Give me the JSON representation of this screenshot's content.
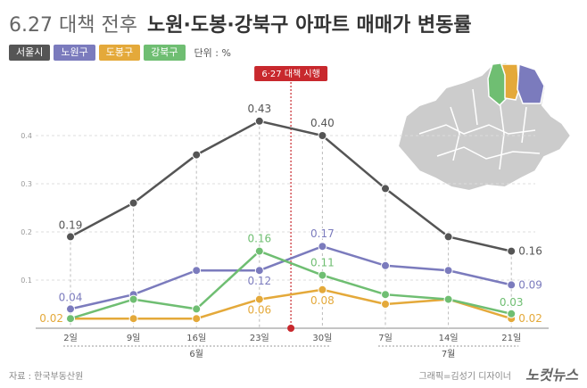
{
  "title": {
    "light": "6.27 대책 전후",
    "bold": "노원·도봉·강북구 아파트 매매가 변동률"
  },
  "unit_label": "단위 : %",
  "source": "자료 : 한국부동산원",
  "credit": "그래픽=김성기 디자이너",
  "logo": "노컷뉴스",
  "policy_label": "6·27 대책 시행",
  "colors": {
    "seoul": "#555555",
    "nowon": "#7b7bbd",
    "dobong": "#e4a93a",
    "gangbuk": "#6fbe72",
    "policy": "#c8282d",
    "grid": "#dddddd"
  },
  "chart_data": {
    "type": "line",
    "title": "6.27 대책 전후 노원·도봉·강북구 아파트 매매가 변동률",
    "xlabel": "",
    "ylabel": "",
    "categories": [
      "2일",
      "9일",
      "16일",
      "23일",
      "30일",
      "7일",
      "14일",
      "21일"
    ],
    "month_labels": [
      {
        "label": "6월",
        "from": 0,
        "to": 4
      },
      {
        "label": "7월",
        "from": 5,
        "to": 7
      }
    ],
    "yticks": [
      0.1,
      0.2,
      0.3,
      0.4
    ],
    "ylim": [
      0,
      0.48
    ],
    "series": [
      {
        "name": "서울시",
        "key": "seoul",
        "values": [
          0.19,
          0.26,
          0.36,
          0.43,
          0.4,
          0.29,
          0.19,
          0.16
        ]
      },
      {
        "name": "노원구",
        "key": "nowon",
        "values": [
          0.04,
          0.07,
          0.12,
          0.12,
          0.17,
          0.13,
          0.12,
          0.09
        ]
      },
      {
        "name": "도봉구",
        "key": "dobong",
        "values": [
          0.02,
          0.02,
          0.02,
          0.06,
          0.08,
          0.05,
          0.06,
          0.02
        ]
      },
      {
        "name": "강북구",
        "key": "gangbuk",
        "values": [
          0.02,
          0.06,
          0.04,
          0.16,
          0.11,
          0.07,
          0.06,
          0.03
        ]
      }
    ],
    "data_labels": [
      {
        "series": "seoul",
        "index": 0,
        "text": "0.19"
      },
      {
        "series": "seoul",
        "index": 3,
        "text": "0.43"
      },
      {
        "series": "seoul",
        "index": 4,
        "text": "0.40"
      },
      {
        "series": "seoul",
        "index": 7,
        "text": "0.16"
      },
      {
        "series": "nowon",
        "index": 0,
        "text": "0.04"
      },
      {
        "series": "nowon",
        "index": 3,
        "text": "0.12"
      },
      {
        "series": "nowon",
        "index": 4,
        "text": "0.17"
      },
      {
        "series": "nowon",
        "index": 7,
        "text": "0.09"
      },
      {
        "series": "dobong",
        "index": 0,
        "text": "0.02"
      },
      {
        "series": "dobong",
        "index": 3,
        "text": "0.06"
      },
      {
        "series": "dobong",
        "index": 4,
        "text": "0.08"
      },
      {
        "series": "dobong",
        "index": 7,
        "text": "0.02"
      },
      {
        "series": "gangbuk",
        "index": 3,
        "text": "0.16"
      },
      {
        "series": "gangbuk",
        "index": 4,
        "text": "0.11"
      },
      {
        "series": "gangbuk",
        "index": 7,
        "text": "0.03"
      }
    ],
    "policy_between": [
      3,
      4
    ]
  }
}
